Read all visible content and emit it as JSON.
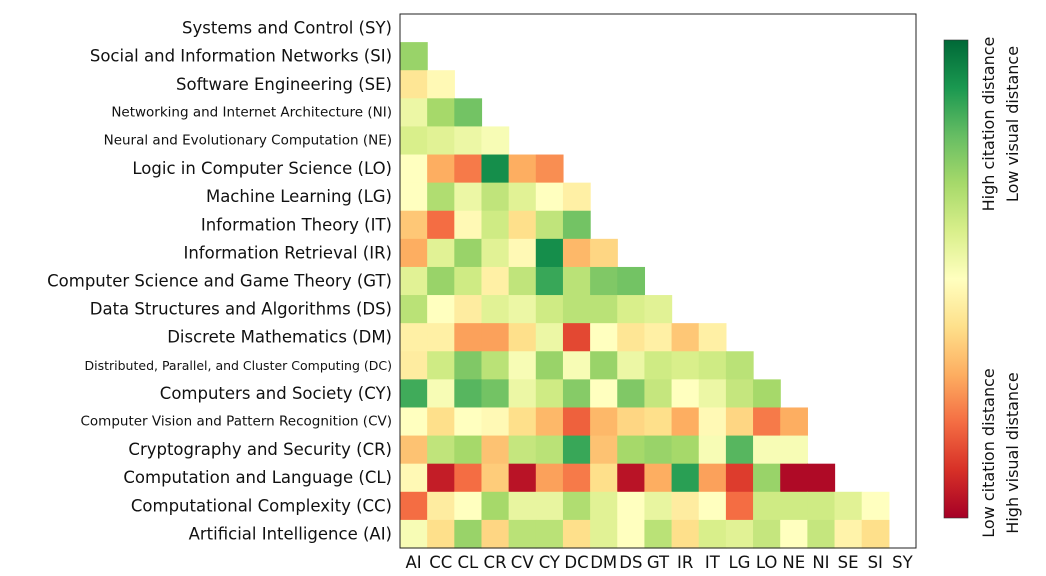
{
  "chart_data": {
    "type": "heatmap",
    "title": "",
    "xlabel": "",
    "ylabel": "",
    "rows": [
      "Systems and Control (SY)",
      "Social and Information Networks (SI)",
      "Software Engineering (SE)",
      "Networking and Internet Architecture (NI)",
      "Neural and Evolutionary Computation (NE)",
      "Logic in Computer Science (LO)",
      "Machine Learning (LG)",
      "Information Theory (IT)",
      "Information Retrieval (IR)",
      "Computer Science and Game Theory (GT)",
      "Data Structures and Algorithms (DS)",
      "Discrete Mathematics (DM)",
      "Distributed, Parallel, and Cluster Computing (DC)",
      "Computers and Society (CY)",
      "Computer Vision and Pattern Recognition (CV)",
      "Cryptography and Security (CR)",
      "Computation and Language (CL)",
      "Computational Complexity (CC)",
      "Artificial Intelligence (AI)"
    ],
    "columns": [
      "AI",
      "CC",
      "CL",
      "CR",
      "CV",
      "CY",
      "DC",
      "DM",
      "DS",
      "GT",
      "IR",
      "IT",
      "LG",
      "LO",
      "NE",
      "NI",
      "SE",
      "SI",
      "SY"
    ],
    "values": [
      [],
      [
        0.72
      ],
      [
        0.42,
        0.48
      ],
      [
        0.55,
        0.7,
        0.78
      ],
      [
        0.6,
        0.58,
        0.55,
        0.52
      ],
      [
        0.5,
        0.3,
        0.22,
        0.92,
        0.3,
        0.25
      ],
      [
        0.5,
        0.68,
        0.55,
        0.65,
        0.58,
        0.5,
        0.45
      ],
      [
        0.35,
        0.2,
        0.48,
        0.62,
        0.4,
        0.65,
        0.78
      ],
      [
        0.3,
        0.58,
        0.72,
        0.58,
        0.48,
        0.92,
        0.32,
        0.38
      ],
      [
        0.58,
        0.72,
        0.62,
        0.45,
        0.65,
        0.86,
        0.66,
        0.76,
        0.78
      ],
      [
        0.66,
        0.5,
        0.44,
        0.58,
        0.55,
        0.62,
        0.66,
        0.66,
        0.6,
        0.58
      ],
      [
        0.45,
        0.45,
        0.28,
        0.28,
        0.4,
        0.55,
        0.14,
        0.5,
        0.42,
        0.45,
        0.35,
        0.45
      ],
      [
        0.44,
        0.62,
        0.76,
        0.66,
        0.52,
        0.72,
        0.52,
        0.72,
        0.55,
        0.62,
        0.6,
        0.62,
        0.66
      ],
      [
        0.85,
        0.52,
        0.82,
        0.78,
        0.55,
        0.62,
        0.75,
        0.5,
        0.76,
        0.64,
        0.5,
        0.55,
        0.64,
        0.7
      ],
      [
        0.5,
        0.4,
        0.5,
        0.48,
        0.4,
        0.32,
        0.18,
        0.32,
        0.38,
        0.4,
        0.3,
        0.48,
        0.38,
        0.22,
        0.3
      ],
      [
        0.34,
        0.65,
        0.7,
        0.34,
        0.64,
        0.66,
        0.86,
        0.34,
        0.7,
        0.72,
        0.7,
        0.52,
        0.82,
        0.52,
        0.52
      ],
      [
        0.48,
        0.06,
        0.2,
        0.36,
        0.04,
        0.28,
        0.22,
        0.4,
        0.04,
        0.3,
        0.88,
        0.28,
        0.12,
        0.72,
        0.02,
        0.02
      ],
      [
        0.2,
        0.44,
        0.5,
        0.7,
        0.56,
        0.56,
        0.68,
        0.58,
        0.5,
        0.56,
        0.44,
        0.5,
        0.2,
        0.62,
        0.62,
        0.62,
        0.58,
        0.5
      ],
      [
        0.52,
        0.4,
        0.72,
        0.38,
        0.66,
        0.66,
        0.4,
        0.58,
        0.5,
        0.66,
        0.4,
        0.6,
        0.58,
        0.64,
        0.5,
        0.64,
        0.46,
        0.4
      ]
    ],
    "colorbar": {
      "top_label_1": "High citation distance",
      "top_label_2": "Low visual distance",
      "bottom_label_1": "Low citation distance",
      "bottom_label_2": "High visual distance",
      "colormap": [
        "#a50026",
        "#d73027",
        "#f46d43",
        "#fdae61",
        "#fee08b",
        "#ffffbf",
        "#d9ef8b",
        "#a6d96a",
        "#66bd63",
        "#1a9850",
        "#006837"
      ]
    }
  }
}
